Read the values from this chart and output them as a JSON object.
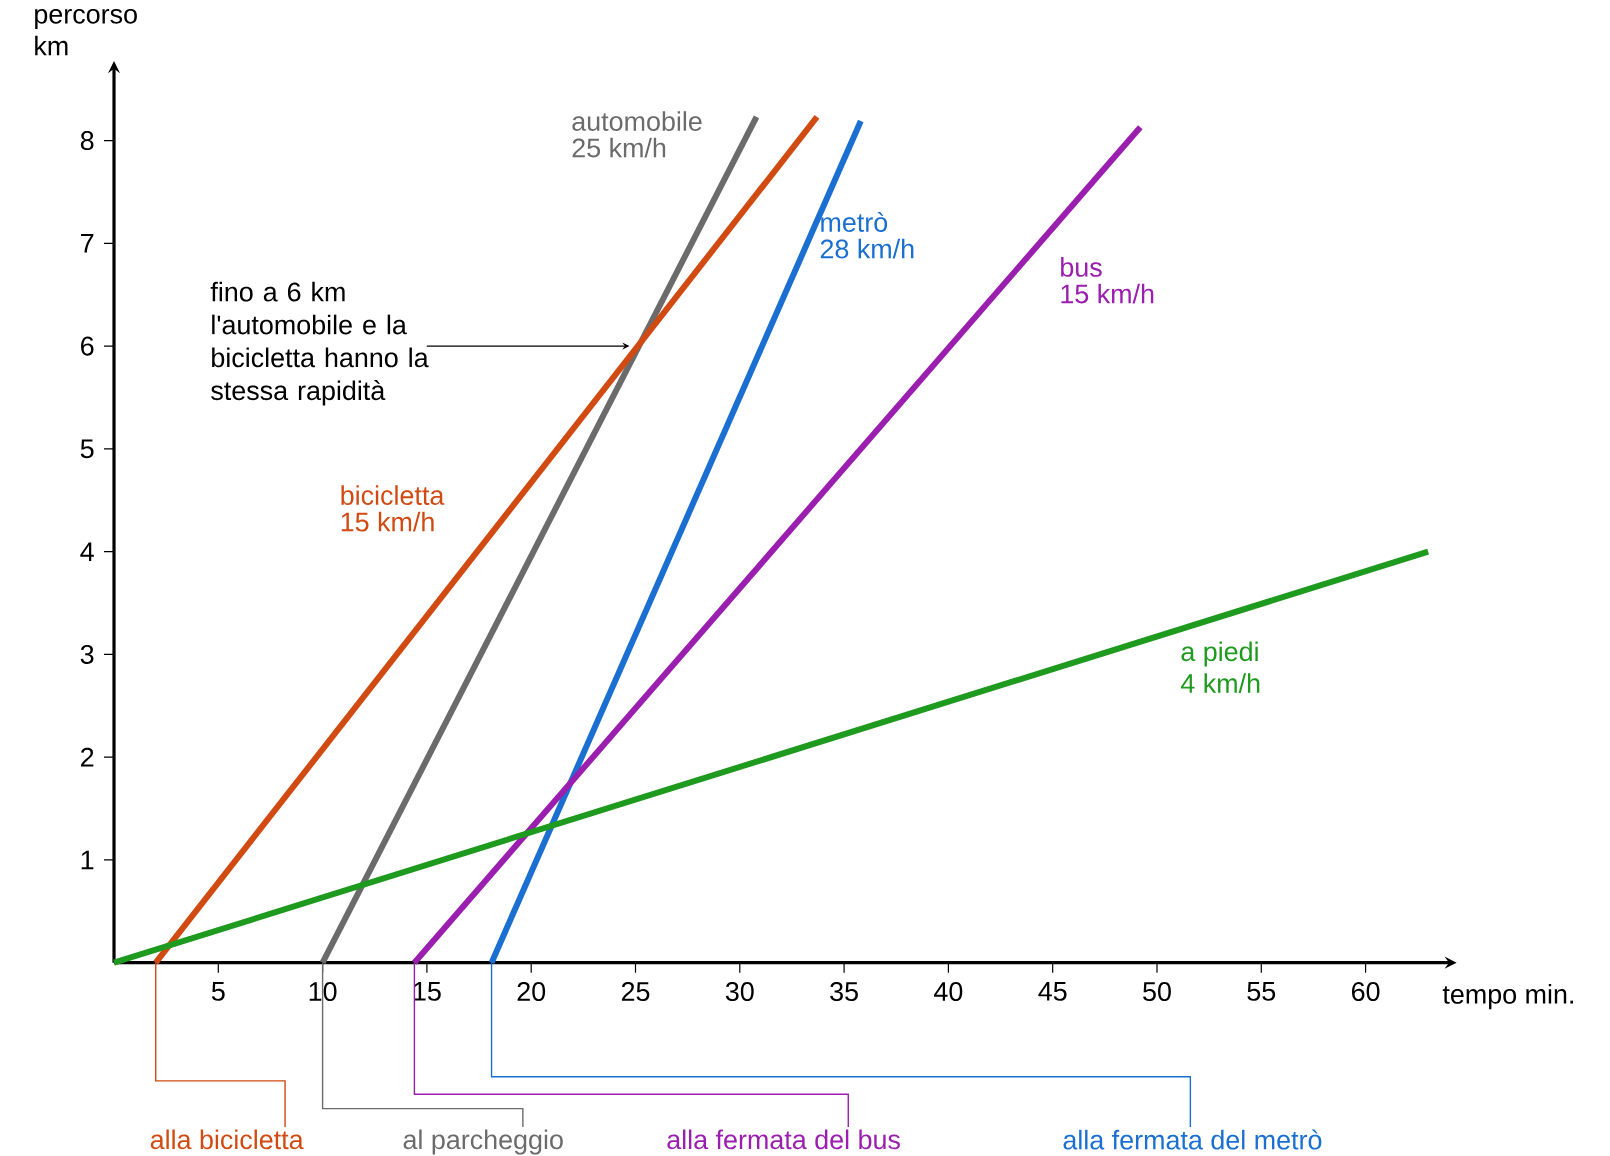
{
  "chart_data": {
    "type": "line",
    "xlabel": "tempo min.",
    "ylabel": "percorso km",
    "xlim": [
      0,
      64
    ],
    "ylim": [
      0,
      8.7
    ],
    "xticks": [
      5,
      10,
      15,
      20,
      25,
      30,
      35,
      40,
      45,
      50,
      55,
      60
    ],
    "yticks": [
      1,
      2,
      3,
      4,
      5,
      6,
      7,
      8
    ],
    "series": [
      {
        "name": "automobile",
        "color": "#6b6b6b",
        "x": [
          10,
          30.8
        ],
        "values": [
          0,
          8.23
        ]
      },
      {
        "name": "bicicletta",
        "color": "#d04a12",
        "x": [
          2,
          33.7
        ],
        "values": [
          0,
          8.23
        ]
      },
      {
        "name": "metrò",
        "color": "#1a6fd1",
        "x": [
          18.1,
          35.8
        ],
        "values": [
          0,
          8.19
        ]
      },
      {
        "name": "bus",
        "color": "#9a1fae",
        "x": [
          14.4,
          49.2
        ],
        "values": [
          0,
          8.13
        ]
      },
      {
        "name": "a piedi",
        "color": "#1e9a1e",
        "x": [
          0,
          63
        ],
        "values": [
          0,
          4
        ]
      }
    ],
    "annotations": [
      {
        "text": "fino a 6 km l'automobile e la bicicletta hanno la stessa rapidità",
        "x": 25,
        "y": 6
      },
      "25 km/h",
      "15 km/h",
      "28 km/h",
      "15 km/h",
      "4 km/h",
      {
        "text": "alla bicicletta",
        "x": 2,
        "y": 0
      },
      {
        "text": "al parcheggio",
        "x": 10,
        "y": 0
      },
      {
        "text": "alla fermata del bus",
        "x": 14.4,
        "y": 0
      },
      {
        "text": "alla fermata del metrò",
        "x": 18.1,
        "y": 0
      }
    ]
  }
}
